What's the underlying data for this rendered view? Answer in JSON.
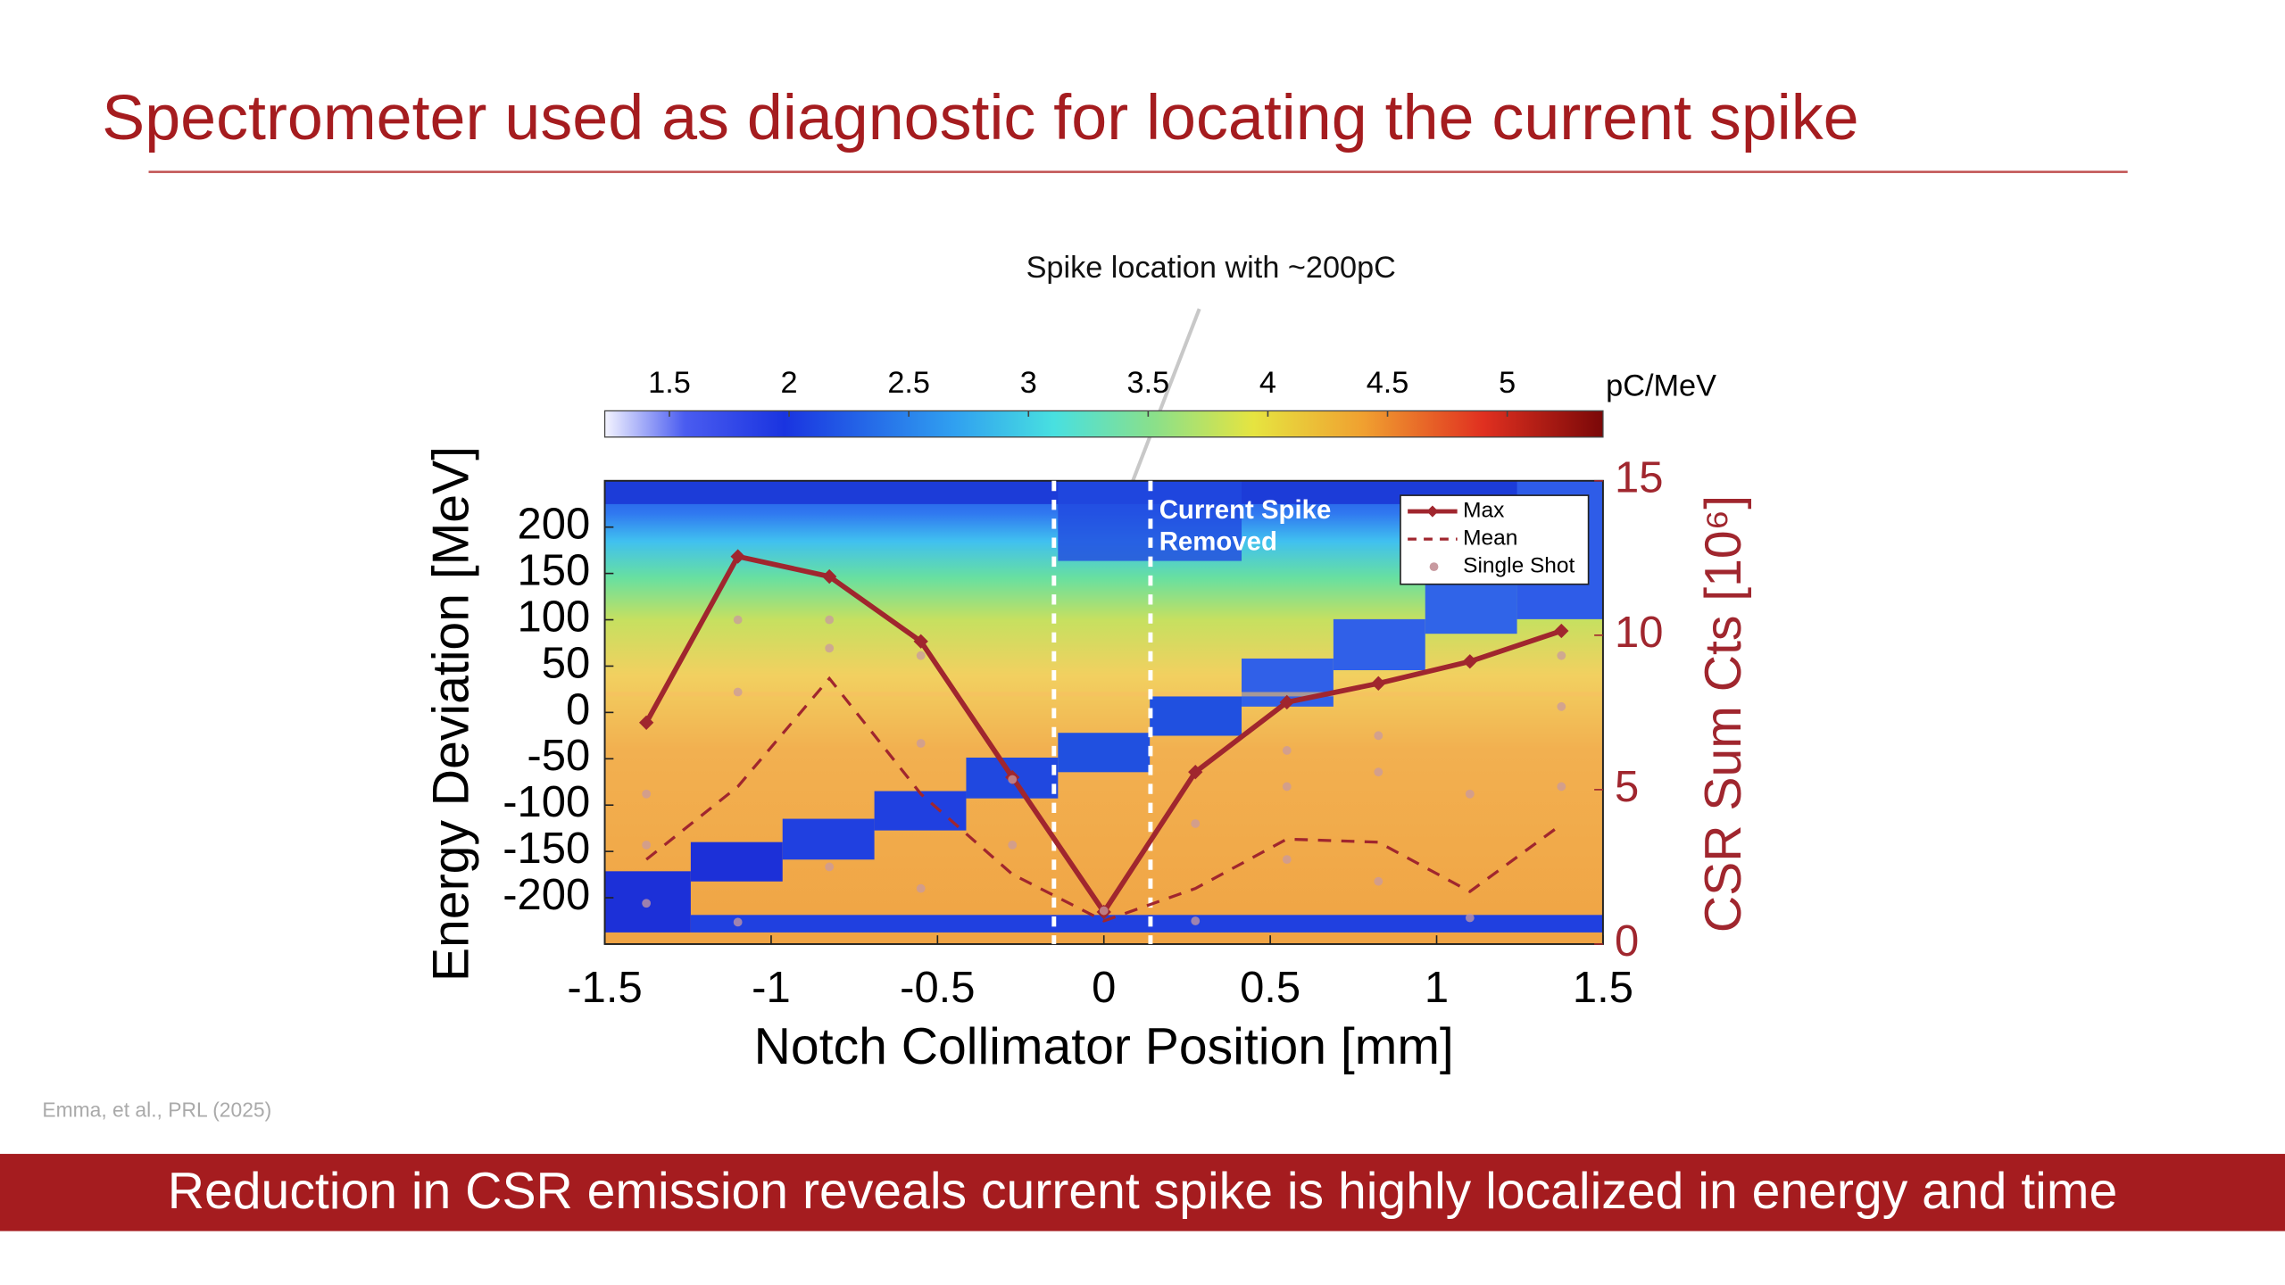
{
  "slide": {
    "title": "Spectrometer used as diagnostic for locating the current spike",
    "annotation": "Spike location with ~200pC",
    "citation": "Emma, et al., PRL (2025)",
    "banner": "Reduction in CSR emission reveals current spike is highly localized in energy and time"
  },
  "chart_data": {
    "type": "line",
    "xlabel": "Notch Collimator Position [mm]",
    "ylabel": "Energy Deviation [MeV]",
    "y2label": "CSR Sum Cts [10⁶]",
    "xlim": [
      -1.5,
      1.5
    ],
    "xticks": [
      -1.5,
      -1,
      -0.5,
      0,
      0.5,
      1,
      1.5
    ],
    "ylim": [
      -250,
      250
    ],
    "yticks": [
      -200,
      -150,
      -100,
      -50,
      0,
      50,
      100,
      150,
      200
    ],
    "y2lim": [
      0,
      15
    ],
    "y2ticks": [
      0,
      5,
      10,
      15
    ],
    "colorbar": {
      "label": "pC/MeV",
      "lim": [
        1.23,
        5.4
      ],
      "ticks": [
        1.5,
        2,
        2.5,
        3,
        3.5,
        4,
        4.5,
        5
      ]
    },
    "region": {
      "lines": [
        "Current Spike",
        "Removed"
      ],
      "x": [
        -0.15,
        0.14
      ]
    },
    "legend": "upper right",
    "x": [
      -1.375,
      -1.1,
      -0.825,
      -0.55,
      -0.275,
      0,
      0.275,
      0.55,
      0.825,
      1.1,
      1.375
    ],
    "series": [
      {
        "name": "Max",
        "color": "#a0262e",
        "axis": "y2",
        "style": "solid",
        "values": [
          7.17,
          12.55,
          11.9,
          9.8,
          5.4,
          1.04,
          5.57,
          7.83,
          8.44,
          9.15,
          10.14
        ]
      },
      {
        "name": "Mean",
        "color": "#a0262e",
        "axis": "y2",
        "style": "dashed",
        "values": [
          2.74,
          5.1,
          8.6,
          4.86,
          2.26,
          0.75,
          1.8,
          3.4,
          3.3,
          1.7,
          3.87
        ]
      },
      {
        "name": "Single Shot",
        "color": "#c89aa0",
        "axis": "y2",
        "style": "points",
        "x": [
          -1.375,
          -1.375,
          -1.375,
          -1.1,
          -1.1,
          -1.1,
          -0.825,
          -0.825,
          -0.825,
          -0.55,
          -0.55,
          -0.55,
          -0.275,
          -0.275,
          0,
          0.275,
          0.275,
          0.55,
          0.55,
          0.55,
          0.825,
          0.825,
          0.825,
          1.1,
          1.1,
          1.375,
          1.375,
          1.375
        ],
        "values": [
          4.86,
          3.21,
          1.32,
          10.5,
          8.16,
          0.71,
          10.5,
          9.58,
          2.5,
          9.34,
          6.5,
          1.8,
          5.33,
          3.21,
          1.08,
          3.9,
          0.75,
          6.27,
          5.1,
          2.74,
          6.75,
          5.57,
          2.03,
          4.86,
          0.85,
          9.34,
          7.69,
          5.1
        ]
      }
    ]
  }
}
